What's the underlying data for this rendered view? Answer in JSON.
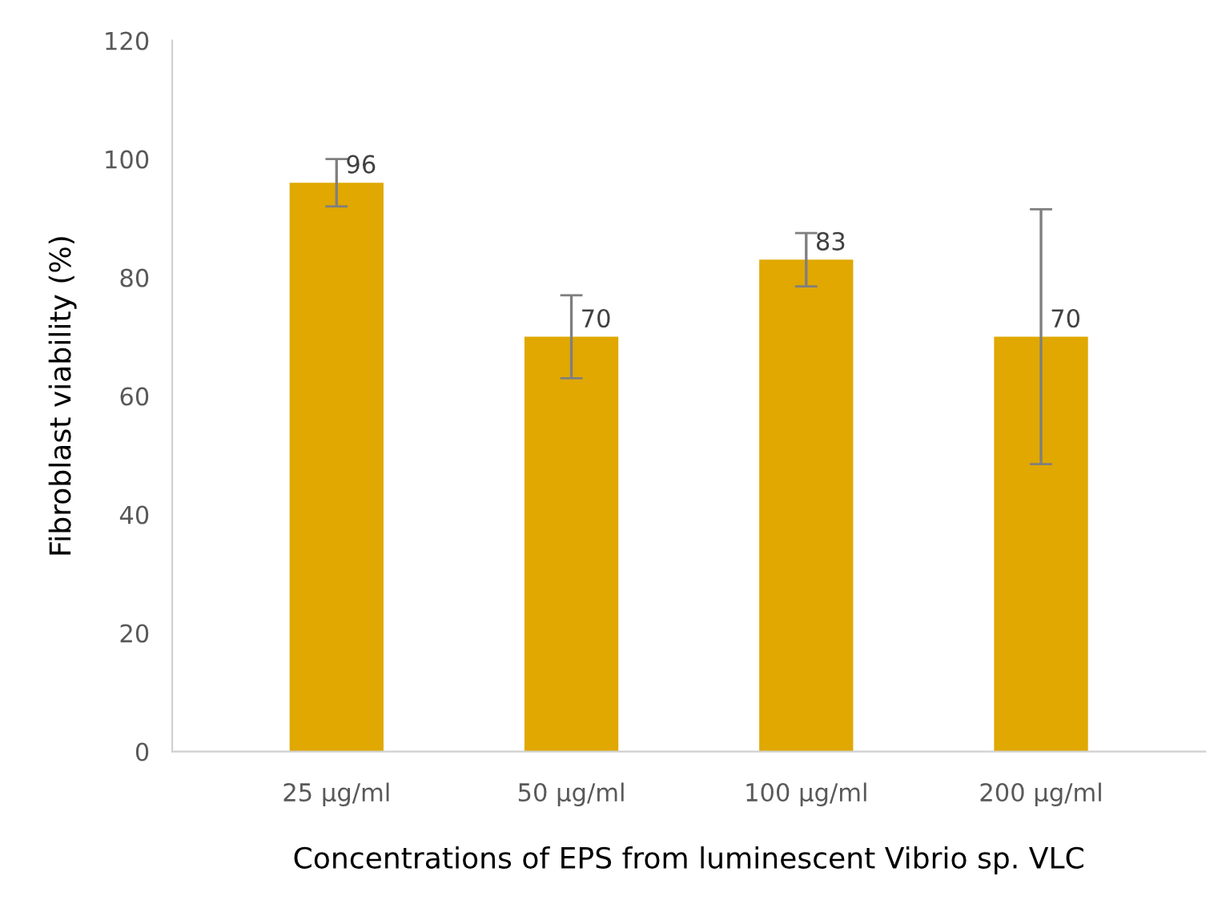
{
  "chart_data": {
    "type": "bar",
    "xlabel": "Concentrations of EPS from luminescent Vibrio sp. VLC",
    "ylabel": "Fibroblast viability (%)",
    "categories": [
      "25 µg/ml",
      "50 µg/ml",
      "100 µg/ml",
      "200 µg/ml"
    ],
    "values": [
      96,
      70,
      83,
      70
    ],
    "errors": [
      4,
      7,
      4.5,
      21.5
    ],
    "data_labels": true,
    "color": "#e0a800",
    "ylim": [
      0,
      120
    ],
    "yticks": [
      0,
      20,
      40,
      60,
      80,
      100,
      120
    ],
    "grid": false,
    "legend": false
  }
}
